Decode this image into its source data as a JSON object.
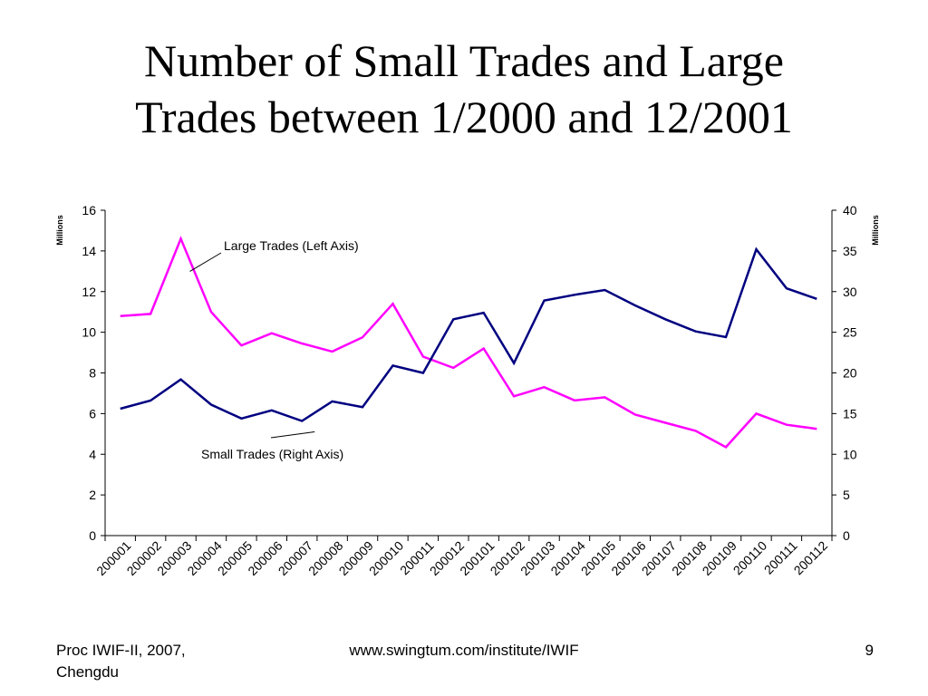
{
  "slide": {
    "title_line1": "Number of Small Trades and Large",
    "title_line2": "Trades between 1/2000 and 12/2001",
    "footer_left_line1": "Proc IWIF-II, 2007,",
    "footer_left_line2": "Chengdu",
    "footer_center": "www.swingtum.com/institute/IWIF",
    "footer_right": "9"
  },
  "chart_data": {
    "type": "line",
    "categories": [
      "200001",
      "200002",
      "200003",
      "200004",
      "200005",
      "200006",
      "200007",
      "200008",
      "200009",
      "200010",
      "200011",
      "200012",
      "200101",
      "200102",
      "200103",
      "200104",
      "200105",
      "200106",
      "200107",
      "200108",
      "200109",
      "200110",
      "200111",
      "200112"
    ],
    "y_left": {
      "label": "Millions",
      "lim": [
        0,
        16
      ],
      "ticks": [
        0,
        2,
        4,
        6,
        8,
        10,
        12,
        14,
        16
      ]
    },
    "y_right": {
      "label": "Millions",
      "lim": [
        0,
        40
      ],
      "ticks": [
        0,
        5,
        10,
        15,
        20,
        25,
        30,
        35,
        40
      ]
    },
    "series": [
      {
        "name": "Large Trades (Left Axis)",
        "axis": "left",
        "color": "#ff00ff",
        "values": [
          10.8,
          10.9,
          14.6,
          11.0,
          9.35,
          9.95,
          9.45,
          9.05,
          9.75,
          11.4,
          8.8,
          8.25,
          9.2,
          6.85,
          7.3,
          6.65,
          6.8,
          5.95,
          5.55,
          5.15,
          4.35,
          6.0,
          5.45,
          5.25
        ]
      },
      {
        "name": "Small Trades (Right Axis)",
        "axis": "right",
        "color": "#000080",
        "values": [
          15.6,
          16.6,
          19.2,
          16.1,
          14.4,
          15.4,
          14.1,
          16.5,
          15.8,
          20.9,
          20.0,
          26.6,
          27.4,
          21.2,
          28.9,
          29.6,
          30.2,
          28.3,
          26.6,
          25.1,
          24.4,
          35.2,
          30.4,
          29.1
        ]
      }
    ],
    "annotations": [
      {
        "text": "Large Trades (Left Axis)",
        "series": "Large Trades (Left Axis)",
        "point": 2
      },
      {
        "text": "Small Trades (Right Axis)",
        "series": "Small Trades (Right Axis)",
        "point": 6
      }
    ]
  }
}
